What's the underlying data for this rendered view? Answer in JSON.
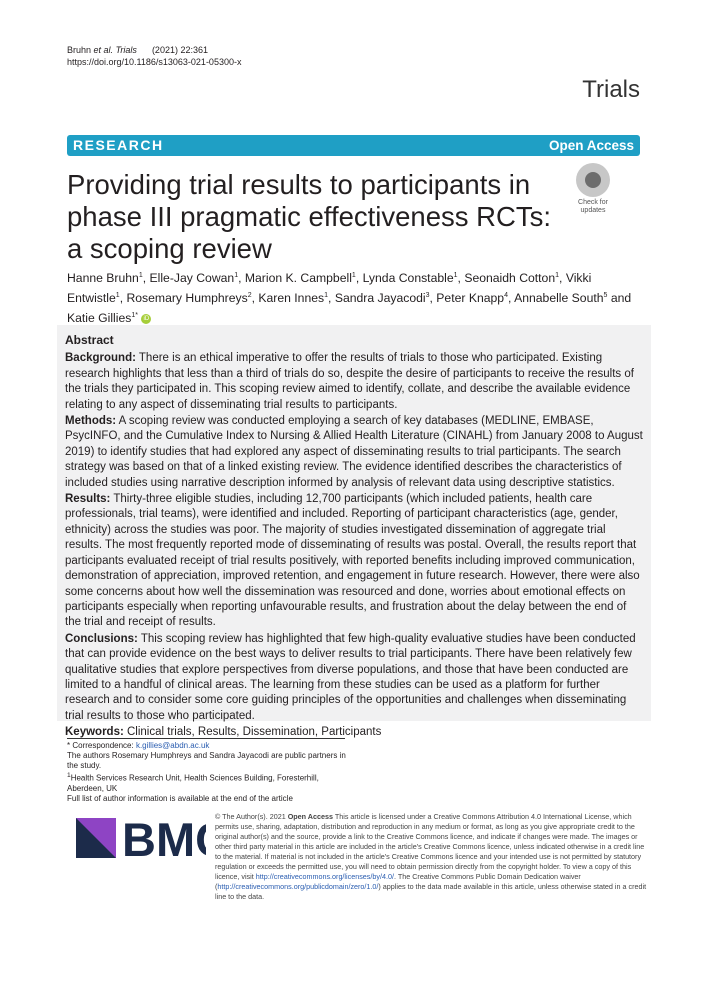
{
  "header": {
    "authors_short": "Bruhn",
    "etal": "et al.",
    "journal_italic": "Trials",
    "citation": "(2021) 22:361",
    "doi": "https://doi.org/10.1186/s13063-021-05300-x",
    "journal": "Trials"
  },
  "banner": {
    "type": "RESEARCH",
    "access": "Open Access"
  },
  "title": "Providing trial results to participants in phase III pragmatic effectiveness RCTs: a scoping review",
  "check_updates": {
    "line1": "Check for",
    "line2": "updates"
  },
  "authors": [
    {
      "name": "Hanne Bruhn",
      "aff": "1"
    },
    {
      "name": "Elle-Jay Cowan",
      "aff": "1"
    },
    {
      "name": "Marion K. Campbell",
      "aff": "1"
    },
    {
      "name": "Lynda Constable",
      "aff": "1"
    },
    {
      "name": "Seonaidh Cotton",
      "aff": "1"
    },
    {
      "name": "Vikki Entwistle",
      "aff": "1"
    },
    {
      "name": "Rosemary Humphreys",
      "aff": "2"
    },
    {
      "name": "Karen Innes",
      "aff": "1"
    },
    {
      "name": "Sandra Jayacodi",
      "aff": "3"
    },
    {
      "name": "Peter Knapp",
      "aff": "4"
    },
    {
      "name": "Annabelle South",
      "aff": "5"
    },
    {
      "name": "Katie Gillies",
      "aff": "1*"
    }
  ],
  "abstract": {
    "heading": "Abstract",
    "sections": [
      {
        "label": "Background:",
        "text": " There is an ethical imperative to offer the results of trials to those who participated. Existing research highlights that less than a third of trials do so, despite the desire of participants to receive the results of the trials they participated in. This scoping review aimed to identify, collate, and describe the available evidence relating to any aspect of disseminating trial results to participants."
      },
      {
        "label": "Methods:",
        "text": " A scoping review was conducted employing a search of key databases (MEDLINE, EMBASE, PsycINFO, and the Cumulative Index to Nursing & Allied Health Literature (CINAHL) from January 2008 to August 2019) to identify studies that had explored any aspect of disseminating results to trial participants. The search strategy was based on that of a linked existing review. The evidence identified describes the characteristics of included studies using narrative description informed by analysis of relevant data using descriptive statistics."
      },
      {
        "label": "Results:",
        "text": " Thirty-three eligible studies, including 12,700 participants (which included patients, health care professionals, trial teams), were identified and included. Reporting of participant characteristics (age, gender, ethnicity) across the studies was poor. The majority of studies investigated dissemination of aggregate trial results. The most frequently reported mode of disseminating of results was postal. Overall, the results report that participants evaluated receipt of trial results positively, with reported benefits including improved communication, demonstration of appreciation, improved retention, and engagement in future research. However, there were also some concerns about how well the dissemination was resourced and done, worries about emotional effects on participants especially when reporting unfavourable results, and frustration about the delay between the end of the trial and receipt of results."
      },
      {
        "label": "Conclusions:",
        "text": " This scoping review has highlighted that few high-quality evaluative studies have been conducted that can provide evidence on the best ways to deliver results to trial participants. There have been relatively few qualitative studies that explore perspectives from diverse populations, and those that have been conducted are limited to a handful of clinical areas. The learning from these studies can be used as a platform for further research and to consider some core guiding principles of the opportunities and challenges when disseminating trial results to those who participated."
      },
      {
        "label": "Keywords:",
        "text": " Clinical trials, Results, Dissemination, Participants"
      }
    ]
  },
  "footnotes": {
    "corr_label": "* Correspondence: ",
    "email": "k.gillies@abdn.ac.uk",
    "partners": "The authors Rosemary Humphreys and Sandra Jayacodi are public partners in the study.",
    "aff_num": "1",
    "aff": "Health Services Research Unit, Health Sciences Building, Foresterhill, Aberdeen, UK",
    "more": "Full list of author information is available at the end of the article"
  },
  "publisher": {
    "logo": "BMC",
    "colors": {
      "dark": "#1c2b4a",
      "purple": "#8e44c4"
    }
  },
  "license": {
    "pre": "© The Author(s). 2021 ",
    "oa": "Open Access",
    "text1": " This article is licensed under a Creative Commons Attribution 4.0 International License, which permits use, sharing, adaptation, distribution and reproduction in any medium or format, as long as you give appropriate credit to the original author(s) and the source, provide a link to the Creative Commons licence, and indicate if changes were made. The images or other third party material in this article are included in the article's Creative Commons licence, unless indicated otherwise in a credit line to the material. If material is not included in the article's Creative Commons licence and your intended use is not permitted by statutory regulation or exceeds the permitted use, you will need to obtain permission directly from the copyright holder. To view a copy of this licence, visit ",
    "link1": "http://creativecommons.org/licenses/by/4.0/",
    "text2": ". The Creative Commons Public Domain Dedication waiver (",
    "link2": "http://creativecommons.org/publicdomain/zero/1.0/",
    "text3": ") applies to the data made available in this article, unless otherwise stated in a credit line to the data."
  },
  "colors": {
    "banner": "#1f9fc5",
    "abstract_bg": "#f1f1f2",
    "orcid": "#a6ce39"
  }
}
